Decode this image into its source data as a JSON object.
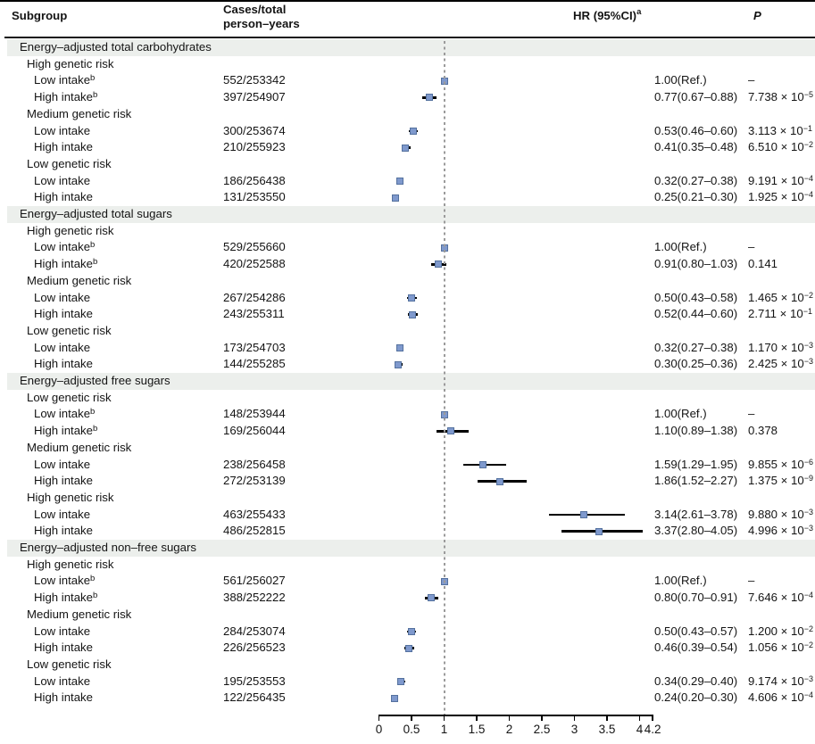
{
  "chart_data": {
    "type": "scatter",
    "subtype": "forest-plot",
    "title": "",
    "columns": {
      "subgroup": "Subgroup",
      "cases_line1": "Cases/total",
      "cases_line2": "person–years",
      "hr": "HR (95%CI)",
      "hr_footnote": "a",
      "p": "P"
    },
    "xaxis": {
      "range": [
        0,
        4.2
      ],
      "ticks": [
        0,
        0.5,
        1,
        1.5,
        2,
        2.5,
        3,
        3.5,
        4,
        4.2
      ],
      "tick_labels": [
        "0",
        "0.5",
        "1",
        "1.5",
        "2",
        "2.5",
        "3",
        "3.5",
        "4",
        "4.2"
      ],
      "reference_line_at": 1
    },
    "colors": {
      "marker_fill": "#7f99cd",
      "marker_border": "#54719e",
      "section_band": "#ecefec",
      "ci_line": "#000000",
      "reference_line": "#9b9b9b",
      "rule": "#000000"
    },
    "rows": [
      {
        "type": "section",
        "label": "Energy–adjusted total carbohydrates"
      },
      {
        "type": "group",
        "label": "High genetic risk"
      },
      {
        "type": "data",
        "label": "Low intake",
        "sup": "b",
        "cases": "552/253342",
        "hr_text": "1.00(Ref.)",
        "p_base": "–",
        "p_exp": null,
        "est": 1.0,
        "lo": null,
        "hi": null
      },
      {
        "type": "data",
        "label": "High intake",
        "sup": "b",
        "cases": "397/254907",
        "hr_text": "0.77(0.67–0.88)",
        "p_base": "7.738 × 10",
        "p_exp": "−5",
        "est": 0.77,
        "lo": 0.67,
        "hi": 0.88
      },
      {
        "type": "group",
        "label": "Medium genetic risk"
      },
      {
        "type": "data",
        "label": "Low intake",
        "sup": null,
        "cases": "300/253674",
        "hr_text": "0.53(0.46–0.60)",
        "p_base": "3.113 × 10",
        "p_exp": "−1",
        "est": 0.53,
        "lo": 0.46,
        "hi": 0.6
      },
      {
        "type": "data",
        "label": "High intake",
        "sup": null,
        "cases": "210/255923",
        "hr_text": "0.41(0.35–0.48)",
        "p_base": "6.510 × 10",
        "p_exp": "−2",
        "est": 0.41,
        "lo": 0.35,
        "hi": 0.48
      },
      {
        "type": "group",
        "label": "Low genetic risk"
      },
      {
        "type": "data",
        "label": "Low intake",
        "sup": null,
        "cases": "186/256438",
        "hr_text": "0.32(0.27–0.38)",
        "p_base": "9.191 × 10",
        "p_exp": "−4",
        "est": 0.32,
        "lo": 0.27,
        "hi": 0.38
      },
      {
        "type": "data",
        "label": "High intake",
        "sup": null,
        "cases": "131/253550",
        "hr_text": "0.25(0.21–0.30)",
        "p_base": "1.925 × 10",
        "p_exp": "−4",
        "est": 0.25,
        "lo": 0.21,
        "hi": 0.3
      },
      {
        "type": "section",
        "label": "Energy–adjusted total sugars"
      },
      {
        "type": "group",
        "label": "High genetic risk"
      },
      {
        "type": "data",
        "label": "Low intake",
        "sup": "b",
        "cases": "529/255660",
        "hr_text": "1.00(Ref.)",
        "p_base": "–",
        "p_exp": null,
        "est": 1.0,
        "lo": null,
        "hi": null
      },
      {
        "type": "data",
        "label": "High intake",
        "sup": "b",
        "cases": "420/252588",
        "hr_text": "0.91(0.80–1.03)",
        "p_base": "0.141",
        "p_exp": null,
        "est": 0.91,
        "lo": 0.8,
        "hi": 1.03
      },
      {
        "type": "group",
        "label": "Medium genetic risk"
      },
      {
        "type": "data",
        "label": "Low intake",
        "sup": null,
        "cases": "267/254286",
        "hr_text": "0.50(0.43–0.58)",
        "p_base": "1.465 × 10",
        "p_exp": "−2",
        "est": 0.5,
        "lo": 0.43,
        "hi": 0.58
      },
      {
        "type": "data",
        "label": "High intake",
        "sup": null,
        "cases": "243/255311",
        "hr_text": "0.52(0.44–0.60)",
        "p_base": "2.711 × 10",
        "p_exp": "−1",
        "est": 0.52,
        "lo": 0.44,
        "hi": 0.6
      },
      {
        "type": "group",
        "label": "Low genetic risk"
      },
      {
        "type": "data",
        "label": "Low intake",
        "sup": null,
        "cases": "173/254703",
        "hr_text": "0.32(0.27–0.38)",
        "p_base": "1.170 × 10",
        "p_exp": "−3",
        "est": 0.32,
        "lo": 0.27,
        "hi": 0.38
      },
      {
        "type": "data",
        "label": "High intake",
        "sup": null,
        "cases": "144/255285",
        "hr_text": "0.30(0.25–0.36)",
        "p_base": "2.425 × 10",
        "p_exp": "−3",
        "est": 0.3,
        "lo": 0.25,
        "hi": 0.36
      },
      {
        "type": "section",
        "label": "Energy–adjusted free sugars"
      },
      {
        "type": "group",
        "label": "Low genetic risk"
      },
      {
        "type": "data",
        "label": "Low intake",
        "sup": "b",
        "cases": "148/253944",
        "hr_text": "1.00(Ref.)",
        "p_base": "–",
        "p_exp": null,
        "est": 1.0,
        "lo": null,
        "hi": null
      },
      {
        "type": "data",
        "label": "High intake",
        "sup": "b",
        "cases": "169/256044",
        "hr_text": "1.10(0.89–1.38)",
        "p_base": "0.378",
        "p_exp": null,
        "est": 1.1,
        "lo": 0.89,
        "hi": 1.38
      },
      {
        "type": "group",
        "label": "Medium genetic risk"
      },
      {
        "type": "data",
        "label": "Low intake",
        "sup": null,
        "cases": "238/256458",
        "hr_text": "1.59(1.29–1.95)",
        "p_base": "9.855 × 10",
        "p_exp": "−6",
        "est": 1.59,
        "lo": 1.29,
        "hi": 1.95
      },
      {
        "type": "data",
        "label": "High intake",
        "sup": null,
        "cases": "272/253139",
        "hr_text": "1.86(1.52–2.27)",
        "p_base": "1.375 × 10",
        "p_exp": "−9",
        "est": 1.86,
        "lo": 1.52,
        "hi": 2.27
      },
      {
        "type": "group",
        "label": "High genetic risk"
      },
      {
        "type": "data",
        "label": "Low intake",
        "sup": null,
        "cases": "463/255433",
        "hr_text": "3.14(2.61–3.78)",
        "p_base": "9.880 × 10",
        "p_exp": "−3",
        "est": 3.14,
        "lo": 2.61,
        "hi": 3.78
      },
      {
        "type": "data",
        "label": "High intake",
        "sup": null,
        "cases": "486/252815",
        "hr_text": "3.37(2.80–4.05)",
        "p_base": "4.996 × 10",
        "p_exp": "−3",
        "est": 3.37,
        "lo": 2.8,
        "hi": 4.05
      },
      {
        "type": "section",
        "label": "Energy–adjusted non–free sugars"
      },
      {
        "type": "group",
        "label": "High genetic risk"
      },
      {
        "type": "data",
        "label": "Low intake",
        "sup": "b",
        "cases": "561/256027",
        "hr_text": "1.00(Ref.)",
        "p_base": "–",
        "p_exp": null,
        "est": 1.0,
        "lo": null,
        "hi": null
      },
      {
        "type": "data",
        "label": "High intake",
        "sup": "b",
        "cases": "388/252222",
        "hr_text": "0.80(0.70–0.91)",
        "p_base": "7.646 × 10",
        "p_exp": "−4",
        "est": 0.8,
        "lo": 0.7,
        "hi": 0.91
      },
      {
        "type": "group",
        "label": "Medium genetic risk"
      },
      {
        "type": "data",
        "label": "Low intake",
        "sup": null,
        "cases": "284/253074",
        "hr_text": "0.50(0.43–0.57)",
        "p_base": "1.200 × 10",
        "p_exp": "−2",
        "est": 0.5,
        "lo": 0.43,
        "hi": 0.57
      },
      {
        "type": "data",
        "label": "High intake",
        "sup": null,
        "cases": "226/256523",
        "hr_text": "0.46(0.39–0.54)",
        "p_base": "1.056 × 10",
        "p_exp": "−2",
        "est": 0.46,
        "lo": 0.39,
        "hi": 0.54
      },
      {
        "type": "group",
        "label": "Low genetic risk"
      },
      {
        "type": "data",
        "label": "Low intake",
        "sup": null,
        "cases": "195/253553",
        "hr_text": "0.34(0.29–0.40)",
        "p_base": "9.174 × 10",
        "p_exp": "−3",
        "est": 0.34,
        "lo": 0.29,
        "hi": 0.4
      },
      {
        "type": "data",
        "label": "High intake",
        "sup": null,
        "cases": "122/256435",
        "hr_text": "0.24(0.20–0.30)",
        "p_base": "4.606 × 10",
        "p_exp": "−4",
        "est": 0.24,
        "lo": 0.2,
        "hi": 0.3
      }
    ]
  }
}
